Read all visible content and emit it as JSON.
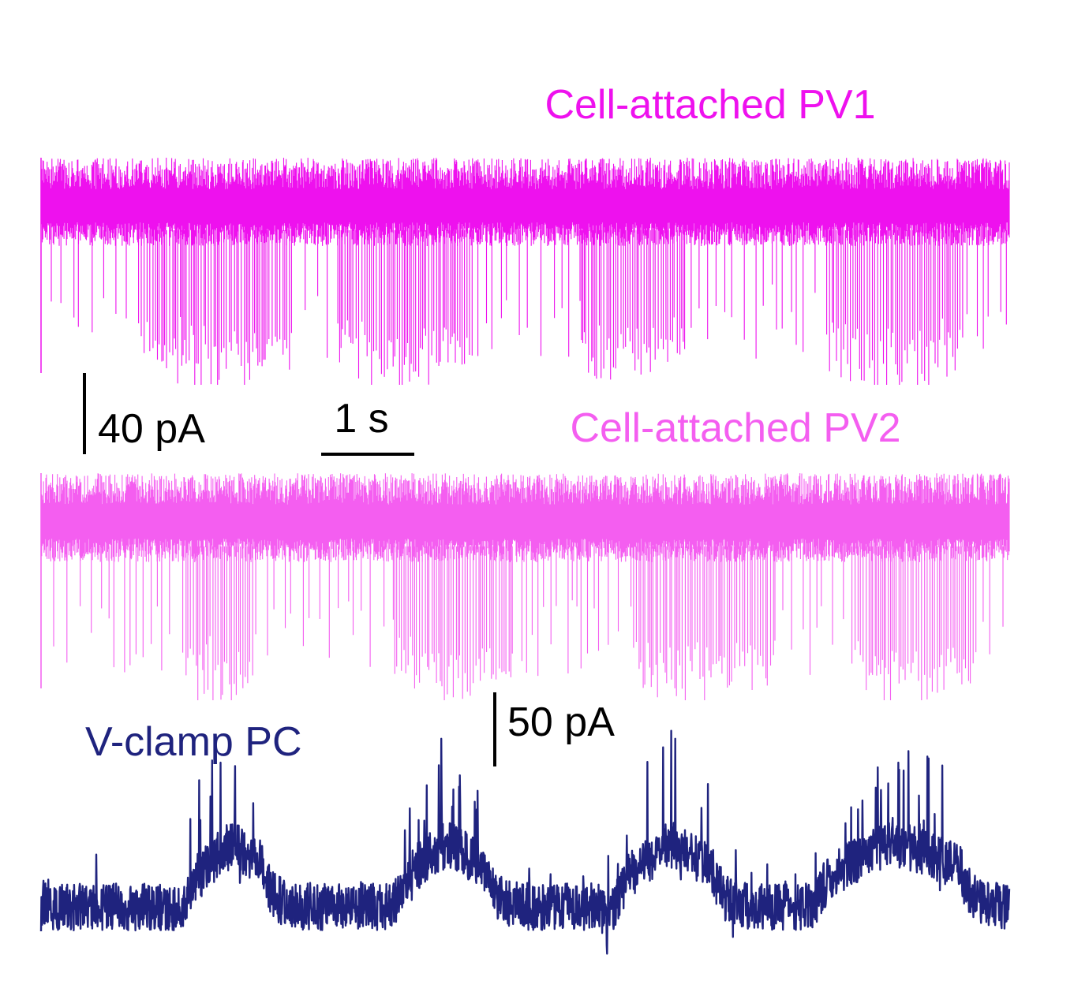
{
  "chart_data": {
    "type": "line",
    "traces": [
      {
        "name": "Cell-attached PV1",
        "color": "#ee11ee",
        "kind": "spikes",
        "seed": 11,
        "bursts": [
          [
            1.3,
            3.6
          ],
          [
            4.2,
            6.2
          ],
          [
            7.7,
            9.3
          ],
          [
            11.3,
            13.3
          ]
        ]
      },
      {
        "name": "Cell-attached PV2",
        "color": "#f45ef0",
        "kind": "spikes",
        "seed": 29,
        "bursts": [
          [
            1.9,
            3.1
          ],
          [
            5.0,
            6.8
          ],
          [
            8.5,
            10.6
          ],
          [
            11.7,
            13.5
          ]
        ]
      },
      {
        "name": "V-clamp PC",
        "color": "#1f237e",
        "kind": "current",
        "seed": 47,
        "bursts": [
          [
            2.1,
            3.2
          ],
          [
            5.1,
            6.4
          ],
          [
            8.3,
            9.7
          ],
          [
            11.2,
            13.3
          ]
        ]
      }
    ],
    "duration_s": 14,
    "scale_bars": {
      "pv_current_label": "40 pA",
      "pv_current_pA": 40,
      "time_label": "1 s",
      "time_s": 1,
      "pc_current_label": "50 pA",
      "pc_current_pA": 50
    }
  }
}
